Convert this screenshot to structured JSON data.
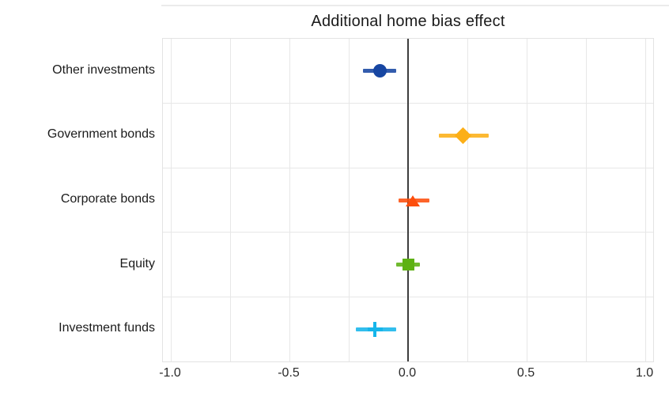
{
  "title": "Additional home bias effect",
  "chart_data": {
    "type": "scatter",
    "subtype": "dot-plot-with-error-bars",
    "orientation": "horizontal",
    "title": "Additional home bias effect",
    "categories": [
      "Other investments",
      "Government bonds",
      "Corporate bonds",
      "Equity",
      "Investment funds"
    ],
    "series": [
      {
        "name": "Other investments",
        "marker": "circle",
        "color": "#1746a2",
        "value": -0.12,
        "ci_low": -0.19,
        "ci_high": -0.05
      },
      {
        "name": "Government bonds",
        "marker": "diamond",
        "color": "#fcaf17",
        "value": 0.23,
        "ci_low": 0.13,
        "ci_high": 0.34
      },
      {
        "name": "Corporate bonds",
        "marker": "triangle-up",
        "color": "#fd4e0d",
        "value": 0.02,
        "ci_low": -0.04,
        "ci_high": 0.09
      },
      {
        "name": "Equity",
        "marker": "square",
        "color": "#5db113",
        "value": 0.0,
        "ci_low": -0.05,
        "ci_high": 0.05
      },
      {
        "name": "Investment funds",
        "marker": "plus",
        "color": "#16b5ea",
        "value": -0.14,
        "ci_low": -0.22,
        "ci_high": -0.05
      }
    ],
    "xlabel": "",
    "ylabel": "",
    "xlim": [
      -1.0,
      1.0
    ],
    "x_ticks": [
      -1.0,
      -0.5,
      0.0,
      0.5,
      1.0
    ],
    "x_tick_labels": [
      "-1.0",
      "-0.5",
      "0.0",
      "0.5",
      "1.0"
    ],
    "x_gridline_step": 0.25,
    "zero_line": 0,
    "grid": true,
    "legend_position": "none",
    "colors": {
      "grid": "#e7e7e7",
      "panel_border": "#e3e3e3",
      "zero_line": "#3d3d3d",
      "text": "#1b1b1b",
      "background": "#ffffff"
    }
  }
}
